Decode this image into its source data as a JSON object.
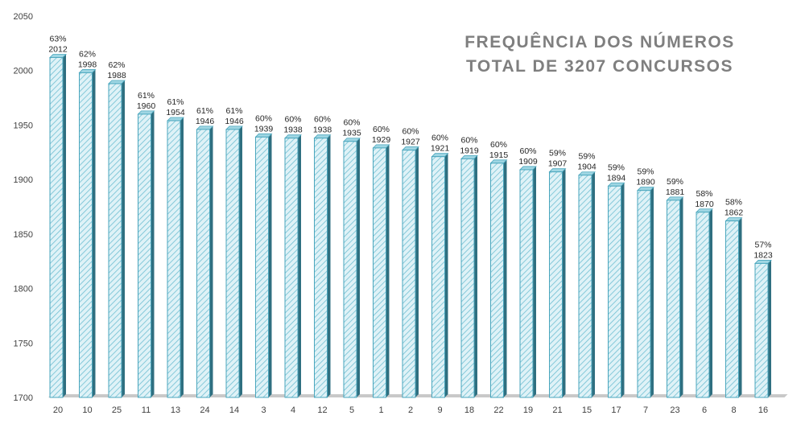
{
  "chart_data": {
    "type": "bar",
    "title_lines": [
      "FREQUÊNCIA DOS NÚMEROS",
      "TOTAL DE 3207 CONCURSOS"
    ],
    "xlabel": "",
    "ylabel": "",
    "ylim": [
      1700,
      2050
    ],
    "yticks": [
      1700,
      1750,
      1800,
      1850,
      1900,
      1950,
      2000,
      2050
    ],
    "grid": false,
    "legend": "none",
    "categories": [
      "20",
      "10",
      "25",
      "11",
      "13",
      "24",
      "14",
      "3",
      "4",
      "12",
      "5",
      "1",
      "2",
      "9",
      "18",
      "22",
      "19",
      "21",
      "15",
      "17",
      "7",
      "23",
      "6",
      "8",
      "16"
    ],
    "values": [
      2012,
      1998,
      1988,
      1960,
      1954,
      1946,
      1946,
      1939,
      1938,
      1938,
      1935,
      1929,
      1927,
      1921,
      1919,
      1915,
      1909,
      1907,
      1904,
      1894,
      1890,
      1881,
      1870,
      1862,
      1823
    ],
    "percent_labels": [
      "63%",
      "62%",
      "62%",
      "61%",
      "61%",
      "61%",
      "61%",
      "60%",
      "60%",
      "60%",
      "60%",
      "60%",
      "60%",
      "60%",
      "60%",
      "60%",
      "60%",
      "59%",
      "59%",
      "59%",
      "59%",
      "59%",
      "58%",
      "58%",
      "57%"
    ],
    "colors": {
      "bar_fill": "#dff2f7",
      "bar_hatch": "#6fbfd2",
      "bar_edge": "#4aa6bd",
      "bar_side": "#2f6f80",
      "bar_top": "#9fd6e3",
      "floor": "#c8c8c8"
    }
  }
}
